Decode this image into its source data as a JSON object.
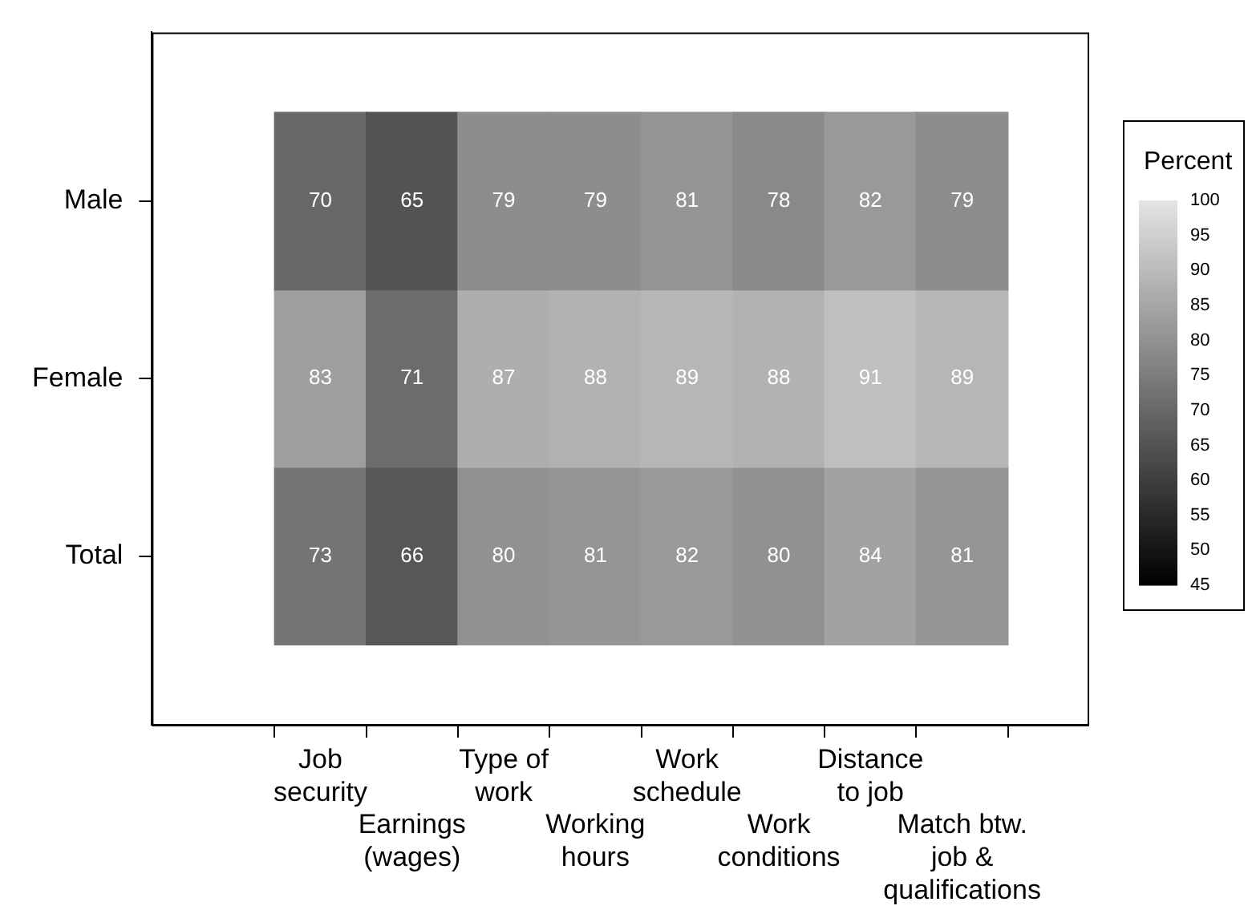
{
  "chart_data": {
    "type": "heatmap",
    "categories": [
      "Job\nsecurity",
      "Earnings\n(wages)",
      "Type of\nwork",
      "Working\nhours",
      "Work\nschedule",
      "Work\nconditions",
      "Distance\nto job",
      "Match btw.\njob &\nqualifications"
    ],
    "y_categories": [
      "Male",
      "Female",
      "Total"
    ],
    "cells": [
      [
        70,
        65,
        79,
        79,
        81,
        78,
        82,
        79
      ],
      [
        83,
        71,
        87,
        88,
        89,
        88,
        91,
        89
      ],
      [
        73,
        66,
        80,
        81,
        82,
        80,
        84,
        81
      ]
    ],
    "data_labels": true,
    "legend_title": "Percent",
    "clim": [
      45,
      100
    ],
    "cticks": [
      45,
      50,
      55,
      60,
      65,
      70,
      75,
      80,
      85,
      90,
      95,
      100
    ]
  }
}
